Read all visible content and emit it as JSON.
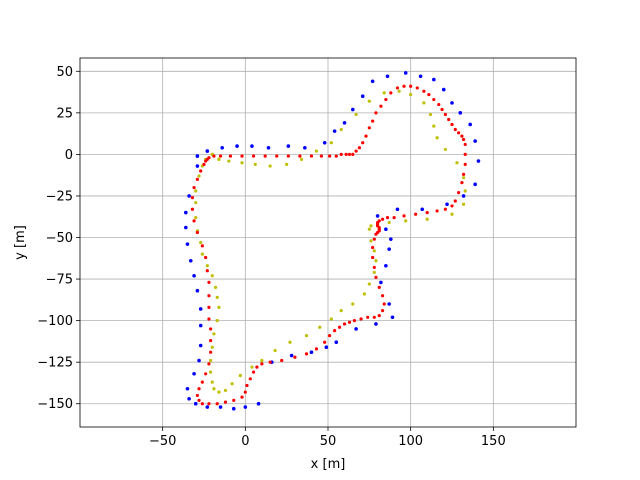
{
  "chart_data": {
    "type": "scatter",
    "title": "",
    "xlabel": "x [m]",
    "ylabel": "y [m]",
    "xlim": [
      -100,
      200
    ],
    "ylim": [
      -164,
      58
    ],
    "xticks": [
      -50,
      0,
      50,
      100,
      150
    ],
    "xtick_labels": [
      "−50",
      "0",
      "50",
      "100",
      "150"
    ],
    "yticks": [
      50,
      25,
      0,
      -25,
      -50,
      -75,
      -100,
      -125,
      -150
    ],
    "ytick_labels": [
      "50",
      "25",
      "0",
      "−25",
      "−50",
      "−75",
      "−100",
      "−125",
      "−150"
    ],
    "grid": true,
    "legend": "none",
    "colors": {
      "centerline": "#ff0000",
      "outer": "#0000ff",
      "inner": "#bfbf00",
      "grid": "#b0b0b0"
    },
    "series": [
      {
        "key": "centerline",
        "marker_size": 1.6,
        "x": [
          -25,
          -27,
          -29,
          -31,
          -32,
          -32,
          -31,
          -29,
          -26,
          -24,
          -23,
          -22,
          -22,
          -22,
          -22,
          -21,
          -21,
          -21,
          -22,
          -24,
          -26,
          -28,
          -29,
          -28,
          -26,
          -22,
          -17,
          -12,
          -7,
          -2,
          0,
          1,
          3,
          5,
          7,
          10,
          15,
          22,
          30,
          37,
          43,
          48,
          51,
          54,
          57,
          60,
          63,
          66,
          70,
          74,
          78,
          81,
          83,
          84,
          83,
          81,
          79,
          78,
          77,
          77,
          78,
          79,
          80,
          81,
          81,
          81,
          80,
          80,
          80,
          81,
          83,
          86,
          90,
          96,
          103,
          110,
          116,
          121,
          125,
          127,
          129,
          131,
          132,
          133,
          133,
          133,
          132,
          131,
          129,
          127,
          125,
          123,
          121,
          119,
          117,
          114,
          111,
          108,
          104,
          100,
          96,
          92,
          88,
          85,
          82,
          79,
          77,
          75,
          73,
          71,
          69,
          67,
          65,
          63,
          61,
          58,
          55,
          51,
          46,
          40,
          33,
          26,
          19,
          12,
          5,
          -2,
          -9,
          -15,
          -19,
          -22,
          -23,
          -24
        ],
        "y": [
          -6,
          -10,
          -15,
          -20,
          -26,
          -33,
          -40,
          -47,
          -55,
          -62,
          -70,
          -77,
          -85,
          -92,
          -99,
          -105,
          -112,
          -119,
          -126,
          -132,
          -137,
          -141,
          -145,
          -148,
          -150,
          -150,
          -150,
          -149,
          -148,
          -146,
          -143,
          -139,
          -135,
          -131,
          -128,
          -126,
          -125,
          -124,
          -122,
          -120,
          -117,
          -113,
          -109,
          -106,
          -104,
          -102,
          -101,
          -100,
          -99,
          -98,
          -98,
          -97,
          -94,
          -90,
          -85,
          -80,
          -74,
          -68,
          -62,
          -56,
          -51,
          -48,
          -47,
          -46,
          -45,
          -44,
          -43,
          -42,
          -41,
          -40,
          -39,
          -38,
          -38,
          -37,
          -36,
          -35,
          -34,
          -33,
          -31,
          -28,
          -23,
          -17,
          -12,
          -6,
          0,
          6,
          9,
          11,
          13,
          15,
          18,
          21,
          24,
          27,
          30,
          33,
          36,
          38,
          40,
          41,
          41,
          40,
          37,
          33,
          29,
          25,
          20,
          16,
          11,
          7,
          4,
          2,
          0,
          0,
          0,
          0,
          -1,
          -1,
          -1,
          -1,
          -1,
          -1,
          -1,
          -1,
          -1,
          -1,
          -1,
          -1,
          -1,
          -2,
          -3,
          -4
        ]
      },
      {
        "key": "outer",
        "marker_size": 1.8,
        "x": [
          -29,
          -34,
          -36,
          -36,
          -35,
          -33,
          -31,
          -29,
          -27,
          -27,
          -27,
          -28,
          -31,
          -35,
          -34,
          -30,
          -23,
          -15,
          -7,
          0,
          8,
          16,
          28,
          40,
          49,
          55,
          67,
          79,
          89,
          87,
          82,
          85,
          87,
          88,
          85,
          80,
          92,
          107,
          122,
          132,
          139,
          141,
          139,
          136,
          130,
          125,
          120,
          114,
          106,
          97,
          86,
          77,
          71,
          65,
          60,
          54,
          48,
          36,
          26,
          14,
          4,
          -5,
          -14,
          -23,
          -29
        ],
        "y": [
          -7,
          -25,
          -35,
          -44,
          -54,
          -64,
          -73,
          -82,
          -93,
          -103,
          -115,
          -124,
          -132,
          -141,
          -147,
          -150,
          -152,
          -152,
          -153,
          -152,
          -150,
          -125,
          -121,
          -119,
          -116,
          -113,
          -105,
          -102,
          -98,
          -90,
          -77,
          -67,
          -57,
          -51,
          -45,
          -37,
          -33,
          -33,
          -30,
          -25,
          -18,
          -4,
          8,
          18,
          25,
          31,
          39,
          45,
          47,
          49,
          47,
          44,
          35,
          27,
          19,
          14,
          7,
          4,
          5,
          4,
          5,
          5,
          4,
          2,
          -1
        ]
      },
      {
        "key": "inner",
        "marker_size": 1.6,
        "x": [
          -20,
          -24,
          -26,
          -28,
          -30,
          -30,
          -30,
          -29,
          -27,
          -26,
          -23,
          -20,
          -18,
          -17,
          -16,
          -17,
          -19,
          -20,
          -21,
          -21,
          -20,
          -19,
          -16,
          -12,
          -8,
          -3,
          4,
          10,
          18,
          27,
          37,
          45,
          52,
          58,
          65,
          72,
          75,
          78,
          79,
          78,
          76,
          75,
          76,
          80,
          87,
          97,
          110,
          125,
          132,
          133,
          132,
          128,
          121,
          116,
          114,
          112,
          108,
          100,
          93,
          84,
          75,
          67,
          58,
          52,
          43,
          34,
          25,
          15,
          6,
          -2,
          -10,
          -16,
          -20
        ],
        "y": [
          0,
          -3,
          -7,
          -13,
          -22,
          -29,
          -38,
          -46,
          -53,
          -60,
          -67,
          -73,
          -80,
          -86,
          -92,
          -100,
          -108,
          -116,
          -124,
          -131,
          -137,
          -141,
          -143,
          -142,
          -138,
          -133,
          -128,
          -124,
          -118,
          -113,
          -109,
          -104,
          -99,
          -94,
          -90,
          -84,
          -78,
          -71,
          -64,
          -58,
          -52,
          -45,
          -43,
          -42,
          -41,
          -40,
          -39,
          -36,
          -30,
          -22,
          -14,
          -5,
          3,
          10,
          17,
          24,
          31,
          36,
          38,
          37,
          32,
          24,
          15,
          7,
          2,
          -3,
          -6,
          -7,
          -6,
          -5,
          -4,
          -3,
          0
        ]
      }
    ]
  }
}
